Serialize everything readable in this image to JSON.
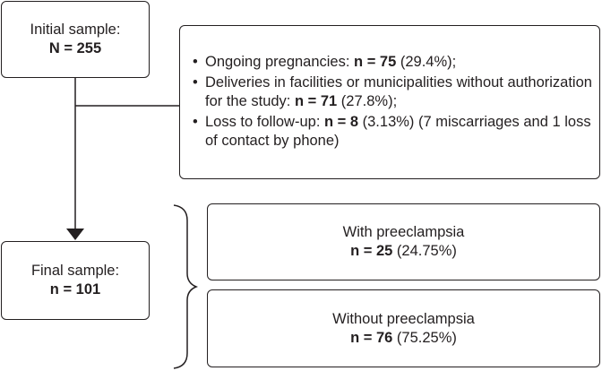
{
  "initial_sample": {
    "label": "Initial sample:",
    "value": "N = 255"
  },
  "exclusions": [
    {
      "bullet": "•",
      "text_before": "Ongoing pregnancies: ",
      "bold": "n = 75",
      "text_after": " (29.4%);"
    },
    {
      "bullet": "•",
      "text_before": "Deliveries in facilities or municipalities without authorization for the study: ",
      "bold": "n = 71",
      "text_after": " (27.8%);"
    },
    {
      "bullet": "•",
      "text_before": "Loss to follow-up: ",
      "bold": "n = 8",
      "text_after": " (3.13%) (7 miscarriages and 1 loss of contact by phone)"
    }
  ],
  "final_sample": {
    "label": "Final sample:",
    "value": "n = 101"
  },
  "groups": [
    {
      "label": "With preeclampsia",
      "value": "n = 25",
      "pct": " (24.75%)"
    },
    {
      "label": "Without preeclampsia",
      "value": "n = 76",
      "pct": " (75.25%)"
    }
  ]
}
